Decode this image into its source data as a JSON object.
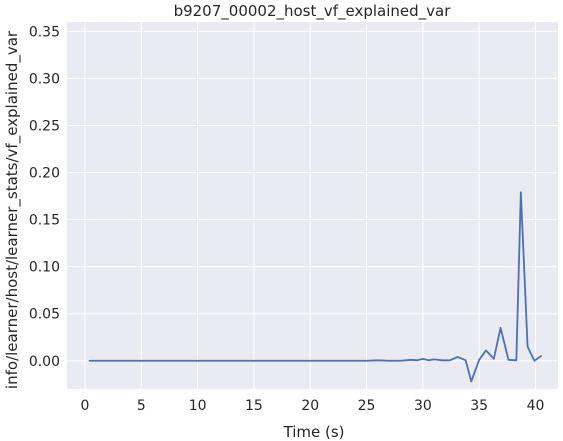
{
  "chart_data": {
    "type": "line",
    "title": "b9207_00002_host_vf_explained_var",
    "xlabel": "Time (s)",
    "ylabel": "info/learner/host/learner_stats/vf_explained_var",
    "xlim": [
      -1.6,
      42.0
    ],
    "ylim": [
      -0.03,
      0.36
    ],
    "xticks": [
      0,
      5,
      10,
      15,
      20,
      25,
      30,
      35,
      40
    ],
    "xtick_labels": [
      "0",
      "5",
      "10",
      "15",
      "20",
      "25",
      "30",
      "35",
      "40"
    ],
    "yticks": [
      0.0,
      0.05,
      0.1,
      0.15,
      0.2,
      0.25,
      0.3,
      0.35
    ],
    "ytick_labels": [
      "0.00",
      "0.05",
      "0.10",
      "0.15",
      "0.20",
      "0.25",
      "0.30",
      "0.35"
    ],
    "grid": true,
    "background": "#eaeaf2",
    "grid_color": "#ffffff",
    "line_color": "#4c72b0",
    "series": [
      {
        "x": [
          0.4,
          2,
          4,
          6,
          8,
          10,
          12,
          14,
          16,
          18,
          20,
          22,
          24,
          25,
          26,
          27,
          28,
          28.5,
          29,
          29.5,
          30,
          30.5,
          31,
          31.7,
          32.4,
          33.1,
          33.8,
          34.3,
          35.0,
          35.6,
          36.3,
          36.9,
          37.6,
          38.3,
          38.7,
          39.3,
          39.9,
          40.5
        ],
        "y": [
          0.0,
          0.0,
          0.0,
          0.0,
          0.0,
          0.0,
          0.0,
          0.0,
          0.0,
          0.0,
          0.0,
          0.0,
          0.0,
          0.0,
          0.0005,
          0.0,
          0.0,
          0.0005,
          0.001,
          0.0005,
          0.002,
          0.0005,
          0.0015,
          0.0005,
          0.0005,
          0.004,
          0.0005,
          -0.022,
          0.001,
          0.011,
          0.002,
          0.035,
          0.001,
          0.0005,
          0.179,
          0.015,
          0.0,
          0.005
        ]
      }
    ]
  }
}
